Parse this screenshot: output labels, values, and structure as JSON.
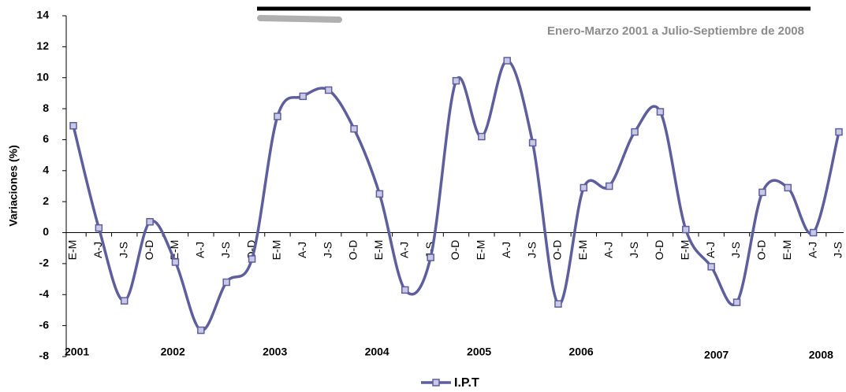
{
  "chart_data": {
    "type": "line",
    "subtitle": "Enero-Marzo 2001 a Julio-Septiembre de 2008",
    "y_label": "Variaciones (%)",
    "categories": [
      "E-M",
      "A-J",
      "J-S",
      "O-D",
      "E-M",
      "A-J",
      "J-S",
      "O-D",
      "E-M",
      "A-J",
      "J-S",
      "O-D",
      "E-M",
      "A-J",
      "J-S",
      "O-D",
      "E-M",
      "A-J",
      "J-S",
      "O-D",
      "E-M",
      "A-J",
      "J-S",
      "O-D",
      "E-M",
      "A-J",
      "J-S",
      "O-D",
      "E-M",
      "A-J",
      "J-S"
    ],
    "year_labels": [
      "2001",
      "2002",
      "2003",
      "2004",
      "2005",
      "2006",
      "2007",
      "2008"
    ],
    "series": [
      {
        "name": "I.P.T",
        "color": "#5e5e9e",
        "values": [
          6.9,
          0.3,
          -4.4,
          0.7,
          -1.9,
          -6.3,
          -3.2,
          -1.7,
          7.5,
          8.8,
          9.2,
          6.7,
          2.5,
          -3.7,
          -1.6,
          9.8,
          6.2,
          11.1,
          5.8,
          -4.6,
          2.9,
          3.0,
          6.5,
          7.8,
          0.2,
          -2.2,
          -4.5,
          2.6,
          2.9,
          0.0,
          6.5
        ]
      }
    ],
    "ylim": [
      -8,
      14
    ],
    "yticks": [
      -8,
      -6,
      -4,
      -2,
      0,
      2,
      4,
      6,
      8,
      10,
      12,
      14
    ],
    "grid": false,
    "legend": "bottom"
  }
}
